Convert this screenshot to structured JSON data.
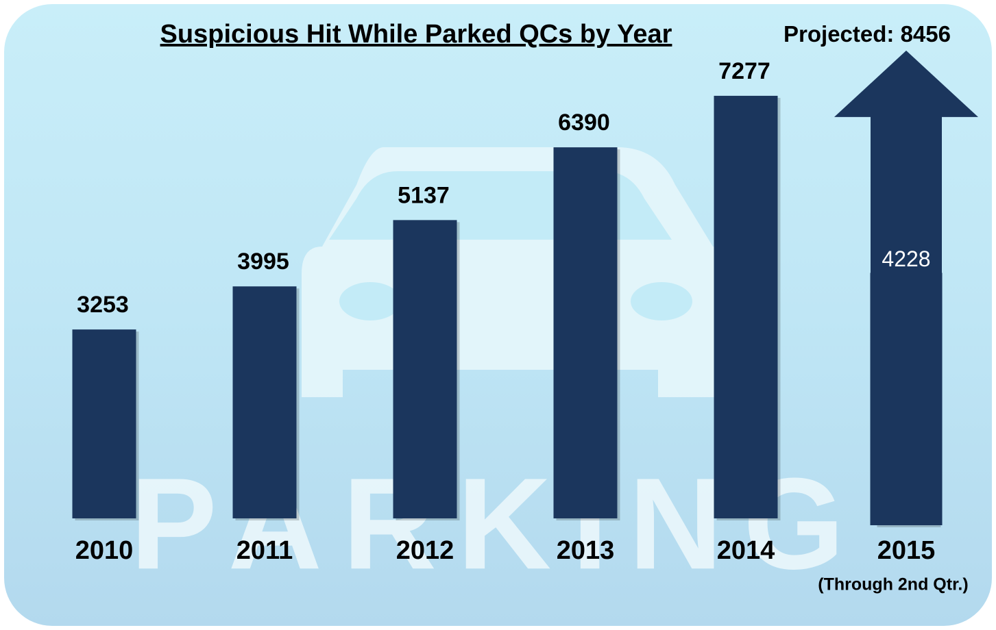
{
  "chart_data": {
    "type": "bar",
    "title": "Suspicious Hit While Parked QCs by Year",
    "background_text": "PARKING",
    "categories": [
      "2010",
      "2011",
      "2012",
      "2013",
      "2014",
      "2015"
    ],
    "category_note": "(Through 2nd Qtr.)",
    "values": [
      3253,
      3995,
      5137,
      6390,
      7277,
      4228
    ],
    "color": "#1b365d",
    "projected": {
      "label": "Projected:",
      "value": 8456
    }
  }
}
